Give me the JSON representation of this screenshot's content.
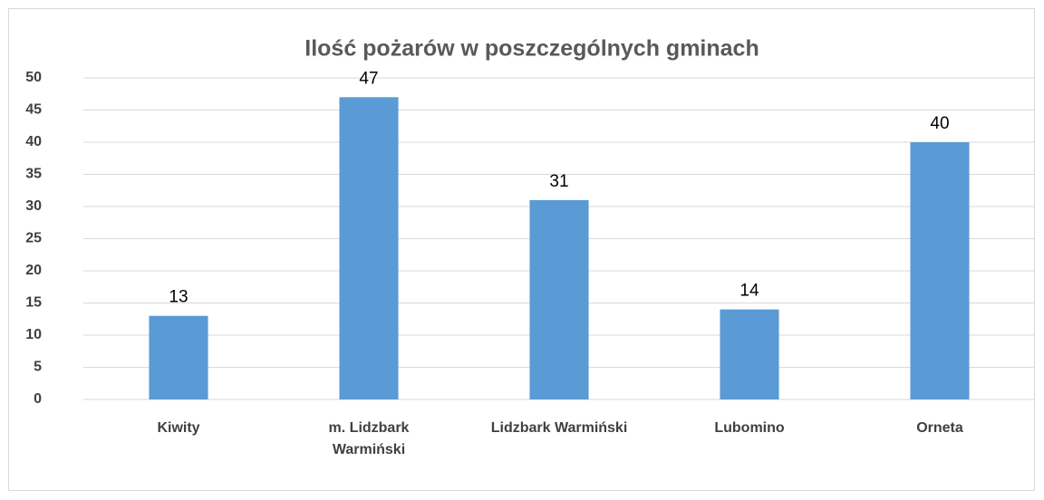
{
  "chart_data": {
    "type": "bar",
    "title": "Ilość pożarów w poszczególnych gminach",
    "categories": [
      "Kiwity",
      "m. Lidzbark Warmiński",
      "Lidzbark Warmiński",
      "Lubomino",
      "Orneta"
    ],
    "values": [
      13,
      47,
      31,
      14,
      40
    ],
    "color": "#5b9bd5",
    "ylim": [
      0,
      50
    ],
    "yticks": [
      0,
      5,
      10,
      15,
      20,
      25,
      30,
      35,
      40,
      45,
      50
    ],
    "grid": true
  }
}
